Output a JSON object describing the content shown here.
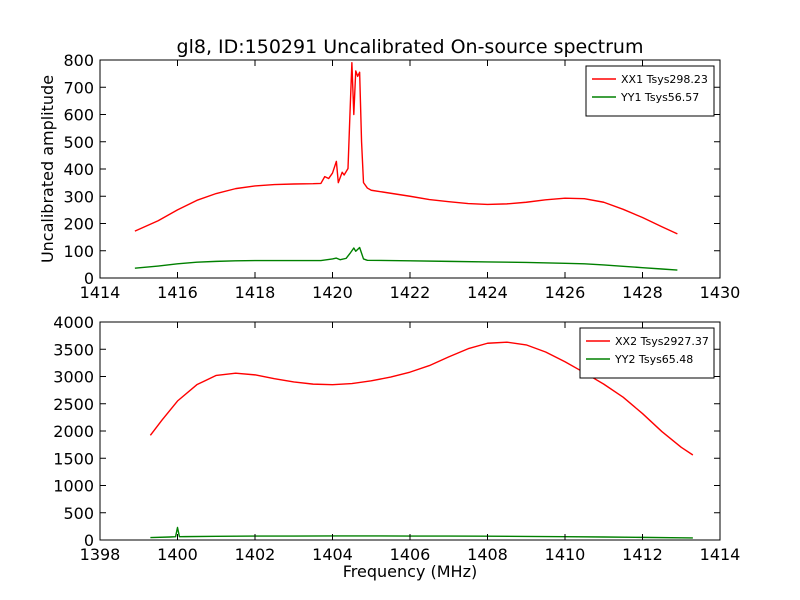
{
  "figure": {
    "title": "gl8, ID:150291 Uncalibrated On-source spectrum",
    "background": "#ffffff"
  },
  "chart_data": [
    {
      "type": "line",
      "title": "",
      "xlabel": "",
      "ylabel": "Uncalibrated amplitude",
      "xlim": [
        1414,
        1430
      ],
      "ylim": [
        0,
        800
      ],
      "xticks": [
        1414,
        1416,
        1418,
        1420,
        1422,
        1424,
        1426,
        1428,
        1430
      ],
      "yticks": [
        0,
        100,
        200,
        300,
        400,
        500,
        600,
        700,
        800
      ],
      "grid": false,
      "legend": "top-right",
      "series": [
        {
          "name": "XX1 Tsys298.23",
          "color": "#ff0000",
          "x": [
            1414.9,
            1415.5,
            1416.0,
            1416.5,
            1417.0,
            1417.5,
            1418.0,
            1418.5,
            1419.0,
            1419.5,
            1419.7,
            1419.8,
            1419.9,
            1420.0,
            1420.1,
            1420.15,
            1420.25,
            1420.3,
            1420.4,
            1420.45,
            1420.5,
            1420.55,
            1420.6,
            1420.65,
            1420.7,
            1420.75,
            1420.8,
            1420.9,
            1421.0,
            1421.5,
            1422.0,
            1422.5,
            1423.0,
            1423.5,
            1424.0,
            1424.5,
            1425.0,
            1425.5,
            1426.0,
            1426.5,
            1427.0,
            1427.5,
            1428.0,
            1428.5,
            1428.9
          ],
          "y": [
            172,
            210,
            250,
            285,
            310,
            328,
            338,
            343,
            345,
            346,
            347,
            372,
            365,
            385,
            428,
            350,
            388,
            378,
            402,
            600,
            790,
            600,
            760,
            740,
            755,
            500,
            350,
            330,
            322,
            311,
            300,
            288,
            280,
            273,
            270,
            272,
            278,
            287,
            293,
            291,
            278,
            252,
            222,
            188,
            162
          ]
        },
        {
          "name": "YY1 Tsys56.57",
          "color": "#008000",
          "x": [
            1414.9,
            1415.5,
            1416.0,
            1416.5,
            1417.0,
            1417.5,
            1418.0,
            1418.5,
            1419.0,
            1419.5,
            1419.7,
            1420.0,
            1420.1,
            1420.2,
            1420.35,
            1420.45,
            1420.55,
            1420.6,
            1420.7,
            1420.8,
            1420.9,
            1422.0,
            1423.0,
            1424.0,
            1425.0,
            1426.0,
            1426.5,
            1427.0,
            1427.5,
            1428.0,
            1428.5,
            1428.9
          ],
          "y": [
            36,
            44,
            52,
            58,
            61,
            63,
            64,
            64,
            64,
            64,
            64,
            70,
            73,
            67,
            72,
            90,
            110,
            98,
            112,
            70,
            65,
            63,
            61,
            59,
            57,
            54,
            52,
            48,
            43,
            38,
            33,
            29
          ]
        }
      ]
    },
    {
      "type": "line",
      "title": "",
      "xlabel": "Frequency (MHz)",
      "ylabel": "",
      "xlim": [
        1398,
        1414
      ],
      "ylim": [
        0,
        4000
      ],
      "xticks": [
        1398,
        1400,
        1402,
        1404,
        1406,
        1408,
        1410,
        1412,
        1414
      ],
      "yticks": [
        0,
        500,
        1000,
        1500,
        2000,
        2500,
        3000,
        3500,
        4000
      ],
      "grid": false,
      "legend": "top-right",
      "series": [
        {
          "name": "XX2 Tsys2927.37",
          "color": "#ff0000",
          "x": [
            1399.3,
            1399.6,
            1400.0,
            1400.5,
            1401.0,
            1401.5,
            1402.0,
            1402.5,
            1403.0,
            1403.5,
            1404.0,
            1404.5,
            1405.0,
            1405.5,
            1406.0,
            1406.5,
            1407.0,
            1407.5,
            1408.0,
            1408.5,
            1409.0,
            1409.5,
            1410.0,
            1410.5,
            1411.0,
            1411.5,
            1412.0,
            1412.5,
            1413.0,
            1413.3
          ],
          "y": [
            1920,
            2200,
            2550,
            2850,
            3020,
            3060,
            3030,
            2960,
            2900,
            2860,
            2850,
            2870,
            2920,
            2990,
            3080,
            3200,
            3360,
            3510,
            3610,
            3630,
            3580,
            3450,
            3270,
            3070,
            2860,
            2620,
            2320,
            1990,
            1700,
            1560
          ]
        },
        {
          "name": "YY2 Tsys65.48",
          "color": "#008000",
          "x": [
            1399.3,
            1399.8,
            1399.95,
            1400.0,
            1400.05,
            1400.2,
            1401.0,
            1402.0,
            1403.0,
            1404.0,
            1405.0,
            1406.0,
            1407.0,
            1408.0,
            1409.0,
            1410.0,
            1411.0,
            1412.0,
            1413.0,
            1413.3
          ],
          "y": [
            45,
            55,
            60,
            230,
            60,
            62,
            68,
            72,
            73,
            74,
            74,
            73,
            72,
            70,
            66,
            61,
            55,
            48,
            40,
            38
          ]
        }
      ]
    }
  ]
}
